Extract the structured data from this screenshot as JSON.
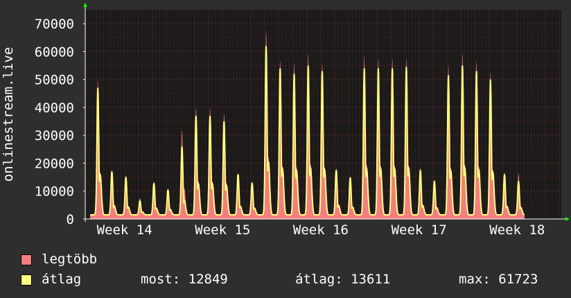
{
  "chart_data": {
    "type": "area",
    "ylabel": "onlinestream.live",
    "ylim": [
      0,
      75000
    ],
    "yticks": [
      0,
      10000,
      20000,
      30000,
      40000,
      50000,
      60000,
      70000
    ],
    "ytick_labels": [
      "0",
      "10000",
      "20000",
      "30000",
      "40000",
      "50000",
      "60000",
      "70000"
    ],
    "x_range": [
      13.6,
      18.45
    ],
    "xticks": [
      {
        "x": 14,
        "label": "Week 14"
      },
      {
        "x": 15,
        "label": "Week 15"
      },
      {
        "x": 16,
        "label": "Week 16"
      },
      {
        "x": 17,
        "label": "Week 17"
      },
      {
        "x": 18,
        "label": "Week 18"
      }
    ],
    "series": [
      {
        "name": "legtöbb",
        "color": "#f27e80",
        "daily_peaks": [
          50000,
          17800,
          15800,
          7500,
          13500,
          11000,
          32000,
          40000,
          40000,
          38000,
          16500,
          13500,
          68000,
          57000,
          56500,
          59500,
          56000,
          18500,
          15500,
          59000,
          58000,
          58000,
          58000,
          18500,
          14200,
          55500,
          59500,
          57000,
          53000,
          17000,
          16500
        ]
      },
      {
        "name": "átlag",
        "color": "#ffff80",
        "daily_peaks": [
          47000,
          17000,
          15000,
          6500,
          12800,
          10500,
          26000,
          37000,
          37000,
          35000,
          16000,
          13000,
          62000,
          54000,
          52000,
          55000,
          53000,
          17500,
          14800,
          54000,
          54000,
          54000,
          54500,
          17500,
          13600,
          51500,
          55000,
          53000,
          50000,
          16000,
          13500
        ]
      }
    ],
    "grid": true
  },
  "legend": {
    "items": [
      {
        "label": "legtöbb",
        "color": "#f27e80"
      },
      {
        "label": "átlag",
        "color": "#ffff80"
      }
    ],
    "stats": {
      "most": "most: 12849",
      "atlag": "átlag: 13611",
      "max": "max: 61723"
    }
  },
  "colors": {
    "background": "#2e2e2e",
    "plot_background": "#1a1a1a",
    "grid": "#6b2b2b",
    "axis": "#ffffff",
    "arrow": "#00ff00"
  }
}
